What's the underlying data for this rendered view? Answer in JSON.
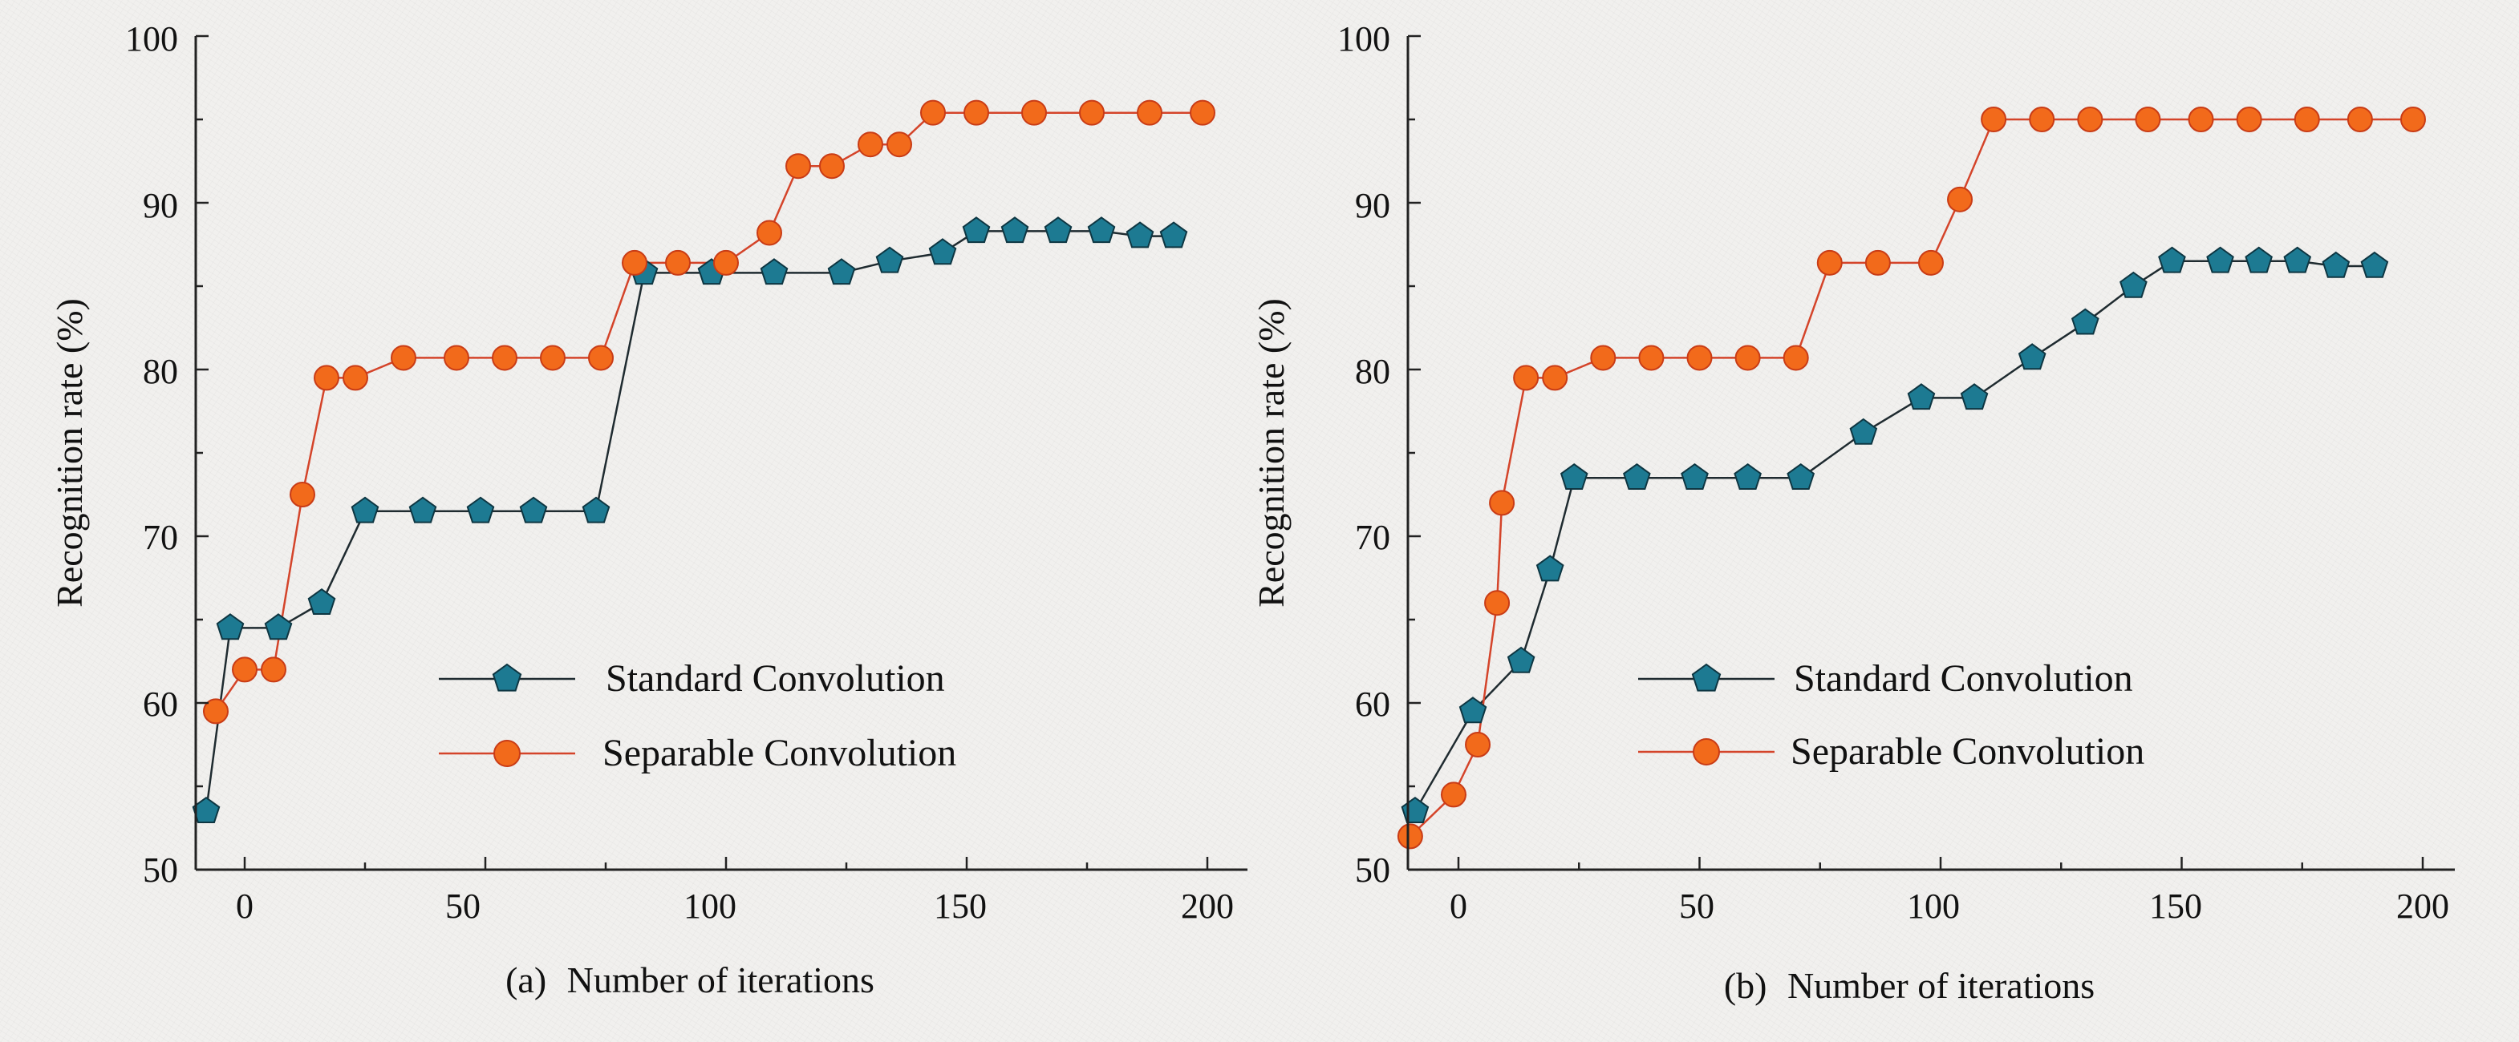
{
  "chart_data": [
    {
      "type": "line",
      "xlabel": "Number of iterations",
      "panel_label": "(a)",
      "ylabel": "Recognition rate (%)",
      "xlim": [
        -10,
        200
      ],
      "ylim": [
        50,
        100
      ],
      "xticks": [
        0,
        50,
        100,
        150,
        200
      ],
      "yticks": [
        50,
        60,
        70,
        80,
        90,
        100
      ],
      "legend_position": "center-right",
      "series": [
        {
          "name": "Standard Convolution",
          "color": "#1d7a92",
          "line_color": "#1f2b30",
          "marker": "pentagon",
          "x": [
            -8,
            -3,
            7,
            16,
            25,
            37,
            49,
            60,
            73,
            83,
            97,
            110,
            124,
            134,
            145,
            152,
            160,
            169,
            178,
            186,
            193
          ],
          "y": [
            53.5,
            64.5,
            64.5,
            66,
            71.5,
            71.5,
            71.5,
            71.5,
            71.5,
            85.8,
            85.8,
            85.8,
            85.8,
            86.5,
            87,
            88.3,
            88.3,
            88.3,
            88.3,
            88,
            88
          ]
        },
        {
          "name": "Separable Convolution",
          "color": "#f26a1b",
          "line_color": "#d4442a",
          "marker": "circle",
          "x": [
            -6,
            0,
            6,
            12,
            17,
            23,
            33,
            44,
            54,
            64,
            74,
            81,
            90,
            100,
            109,
            115,
            122,
            130,
            136,
            143,
            152,
            164,
            176,
            188,
            199
          ],
          "y": [
            59.5,
            62,
            62,
            72.5,
            79.5,
            79.5,
            80.7,
            80.7,
            80.7,
            80.7,
            80.7,
            86.4,
            86.4,
            86.4,
            88.2,
            92.2,
            92.2,
            93.5,
            93.5,
            95.4,
            95.4,
            95.4,
            95.4,
            95.4,
            95.4
          ]
        }
      ]
    },
    {
      "type": "line",
      "xlabel": "Number of iterations",
      "panel_label": "(b)",
      "ylabel": "Recognition rate (%)",
      "xlim": [
        -10,
        200
      ],
      "ylim": [
        50,
        100
      ],
      "xticks": [
        0,
        50,
        100,
        150,
        200
      ],
      "yticks": [
        50,
        60,
        70,
        80,
        90,
        100
      ],
      "legend_position": "center-right",
      "series": [
        {
          "name": "Standard Convolution",
          "color": "#1d7a92",
          "line_color": "#1f2b30",
          "marker": "pentagon",
          "x": [
            -9,
            3,
            13,
            19,
            24,
            37,
            49,
            60,
            71,
            84,
            96,
            107,
            119,
            130,
            140,
            148,
            158,
            166,
            174,
            182,
            190
          ],
          "y": [
            53.5,
            59.5,
            62.5,
            68,
            73.5,
            73.5,
            73.5,
            73.5,
            73.5,
            76.2,
            78.3,
            78.3,
            80.7,
            82.8,
            85,
            86.5,
            86.5,
            86.5,
            86.5,
            86.2,
            86.2
          ],
          "x_scale_note": "visual"
        },
        {
          "name": "Separable Convolution",
          "color": "#f26a1b",
          "line_color": "#d4442a",
          "marker": "circle",
          "x": [
            -10,
            -1,
            4,
            8,
            9,
            14,
            20,
            30,
            40,
            50,
            60,
            70,
            77,
            87,
            98,
            104,
            111,
            121,
            131,
            143,
            154,
            164,
            176,
            187,
            198
          ],
          "y": [
            52,
            54.5,
            57.5,
            66,
            72,
            79.5,
            79.5,
            80.7,
            80.7,
            80.7,
            80.7,
            80.7,
            86.4,
            86.4,
            86.4,
            90.2,
            95,
            95,
            95,
            95,
            95,
            95,
            95,
            95,
            95
          ]
        }
      ]
    }
  ]
}
